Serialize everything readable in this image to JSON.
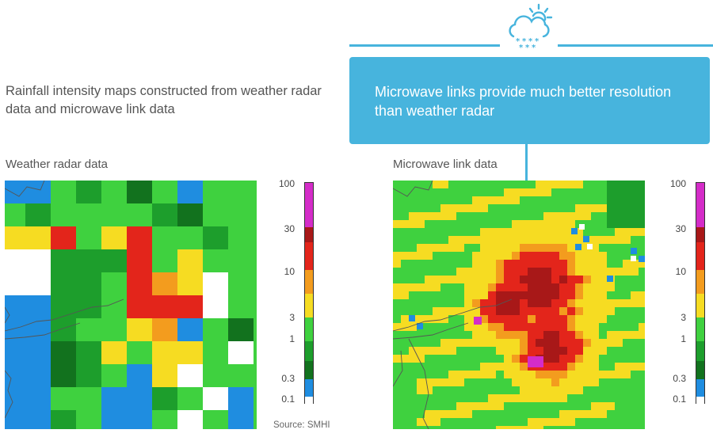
{
  "callout": {
    "text": "Microwave links provide much better resolution than weather radar",
    "icon": "cloud-snow-sun-icon",
    "color": "#47b4dd"
  },
  "intro": "Rainfall intensity maps constructed from weather radar data and microwave link data",
  "panels": {
    "left_title": "Weather radar data",
    "right_title": "Microwave link data"
  },
  "scale": {
    "ticks": [
      "100",
      "30",
      "10",
      "3",
      "1",
      "0.3",
      "0.1"
    ],
    "colors": {
      "magenta": "#d42cc8",
      "dark_red": "#a81818",
      "red": "#e3251b",
      "orange": "#f39c1e",
      "yellow": "#f6dc22",
      "light_green": "#3fd13f",
      "green": "#1d9e2c",
      "dark_green": "#12721e",
      "blue": "#1f8de0",
      "white": "#ffffff"
    }
  },
  "source": "Source: SMHI"
}
